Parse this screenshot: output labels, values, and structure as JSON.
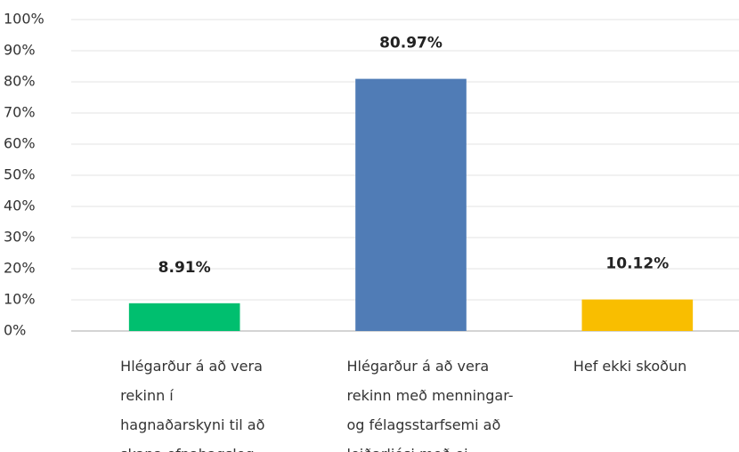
{
  "chart_data": {
    "type": "bar",
    "categories": [
      "Hlégarður á að vera rekinn í hagnaðarskyni til að skapa efnahagsleg...",
      "Hlégarður á að vera rekinn með menningar- og félagsstarfsemi að leiðarljósi með ei...",
      "Hef ekki skoðun"
    ],
    "values": [
      8.91,
      80.97,
      10.12
    ],
    "value_labels": [
      "8.91%",
      "80.97%",
      "10.12%"
    ],
    "colors": [
      "#00bf6f",
      "#507cb6",
      "#f9be00"
    ],
    "ylim": [
      0,
      100
    ],
    "yticks": [
      {
        "value": 0,
        "label": "0%"
      },
      {
        "value": 10,
        "label": "10%"
      },
      {
        "value": 20,
        "label": "20%"
      },
      {
        "value": 30,
        "label": "30%"
      },
      {
        "value": 40,
        "label": "40%"
      },
      {
        "value": 50,
        "label": "50%"
      },
      {
        "value": 60,
        "label": "60%"
      },
      {
        "value": 70,
        "label": "70%"
      },
      {
        "value": 80,
        "label": "80%"
      },
      {
        "value": 90,
        "label": "90%"
      },
      {
        "value": 100,
        "label": "100%"
      }
    ],
    "grid": true
  }
}
